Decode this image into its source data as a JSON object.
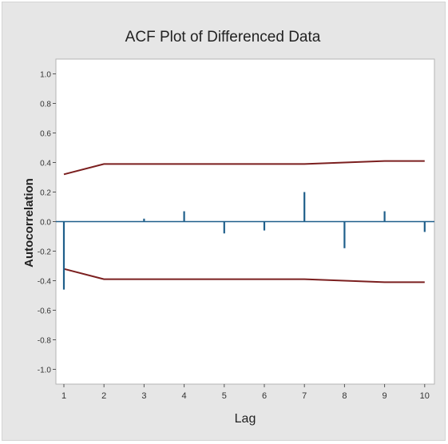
{
  "chart_data": {
    "type": "bar",
    "title": "ACF Plot of Differenced Data",
    "xlabel": "Lag",
    "ylabel": "Autocorrelation",
    "x": [
      1,
      2,
      3,
      4,
      5,
      6,
      7,
      8,
      9,
      10
    ],
    "values": [
      -0.46,
      0.0,
      0.02,
      0.07,
      -0.08,
      -0.06,
      0.2,
      -0.18,
      0.07,
      -0.07
    ],
    "ylim": [
      -1.1,
      1.1
    ],
    "yticks": [
      1.0,
      0.8,
      0.6,
      0.4,
      0.2,
      0.0,
      -0.2,
      -0.4,
      -0.6,
      -0.8,
      -1.0
    ],
    "ytick_labels": [
      "1.0",
      "0.8",
      "0.6",
      "0.4",
      "0.2",
      "0.0",
      "-0.2",
      "-0.4",
      "-0.6",
      "-0.8",
      "-1.0"
    ],
    "xticks": [
      1,
      2,
      3,
      4,
      5,
      6,
      7,
      8,
      9,
      10
    ],
    "xtick_labels": [
      "1",
      "2",
      "3",
      "4",
      "5",
      "6",
      "7",
      "8",
      "9",
      "10"
    ],
    "significance_limits": {
      "upper": [
        0.32,
        0.39,
        0.39,
        0.39,
        0.39,
        0.39,
        0.39,
        0.4,
        0.41,
        0.41
      ],
      "lower": [
        -0.32,
        -0.39,
        -0.39,
        -0.39,
        -0.39,
        -0.39,
        -0.39,
        -0.4,
        -0.41,
        -0.41
      ]
    },
    "grid": false,
    "colors": {
      "bar": "#1f5f8b",
      "limits": "#7b1f1f",
      "zero_line": "#1f5f8b",
      "background": "#e6e6e6",
      "plot_area": "#ffffff"
    }
  }
}
